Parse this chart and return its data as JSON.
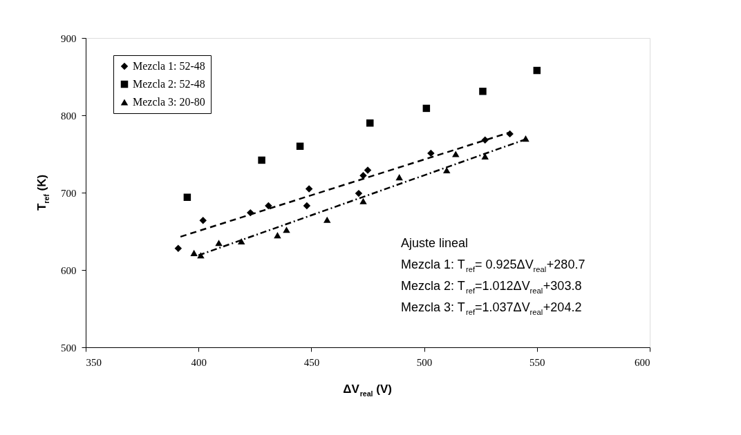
{
  "chart_data": {
    "type": "scatter",
    "xlabel": "ΔV$_{real}$ (V)",
    "ylabel": "T$_{ref}$ (K)",
    "xlim": [
      350,
      600
    ],
    "xticks": [
      350,
      400,
      450,
      500,
      550,
      600
    ],
    "ylim": [
      500,
      900
    ],
    "yticks": [
      500,
      600,
      700,
      800,
      900
    ],
    "grid": false,
    "legend": "top left",
    "series": [
      {
        "name": "Mezcla 1: 52-48",
        "color": "#000000",
        "marker": "diamond",
        "x": [
          391,
          402,
          423,
          431,
          448,
          449,
          471,
          473,
          475,
          503,
          527,
          538
        ],
        "values": [
          628,
          664,
          674,
          683,
          683,
          705,
          699,
          722,
          729,
          751,
          768,
          776
        ]
      },
      {
        "name": "Mezcla 2: 52-48",
        "color": "#000000",
        "marker": "square",
        "x": [
          395,
          428,
          445,
          476,
          501,
          526,
          550
        ],
        "values": [
          694,
          742,
          760,
          790,
          809,
          831,
          858
        ]
      },
      {
        "name": "Mezcla 3: 20-80",
        "color": "#000000",
        "marker": "triangle",
        "x": [
          398,
          401,
          409,
          419,
          435,
          439,
          457,
          473,
          489,
          510,
          514,
          527,
          545
        ],
        "values": [
          622,
          619,
          635,
          637,
          645,
          652,
          665,
          689,
          720,
          729,
          750,
          747,
          770
        ]
      },
      {
        "type": "line",
        "color": "#000000",
        "marker": "none",
        "line_style": "dashed",
        "x": [
          392,
          538
        ],
        "values": [
          643,
          778
        ]
      },
      {
        "type": "line",
        "color": "#000000",
        "marker": "none",
        "line_style": "dotted",
        "x": [
          400,
          545
        ],
        "values": [
          619,
          769
        ]
      }
    ],
    "annotations": [
      "Ajuste lineal",
      "Mezcla 1: T$_{ref}$= 0.925ΔV$_{real}$+280.7",
      "Mezcla 2: T$_{ref}$=1.012ΔV$_{real}$+303.8",
      "Mezcla 3: T$_{ref}$=1.037ΔV$_{real}$+204.2"
    ]
  }
}
